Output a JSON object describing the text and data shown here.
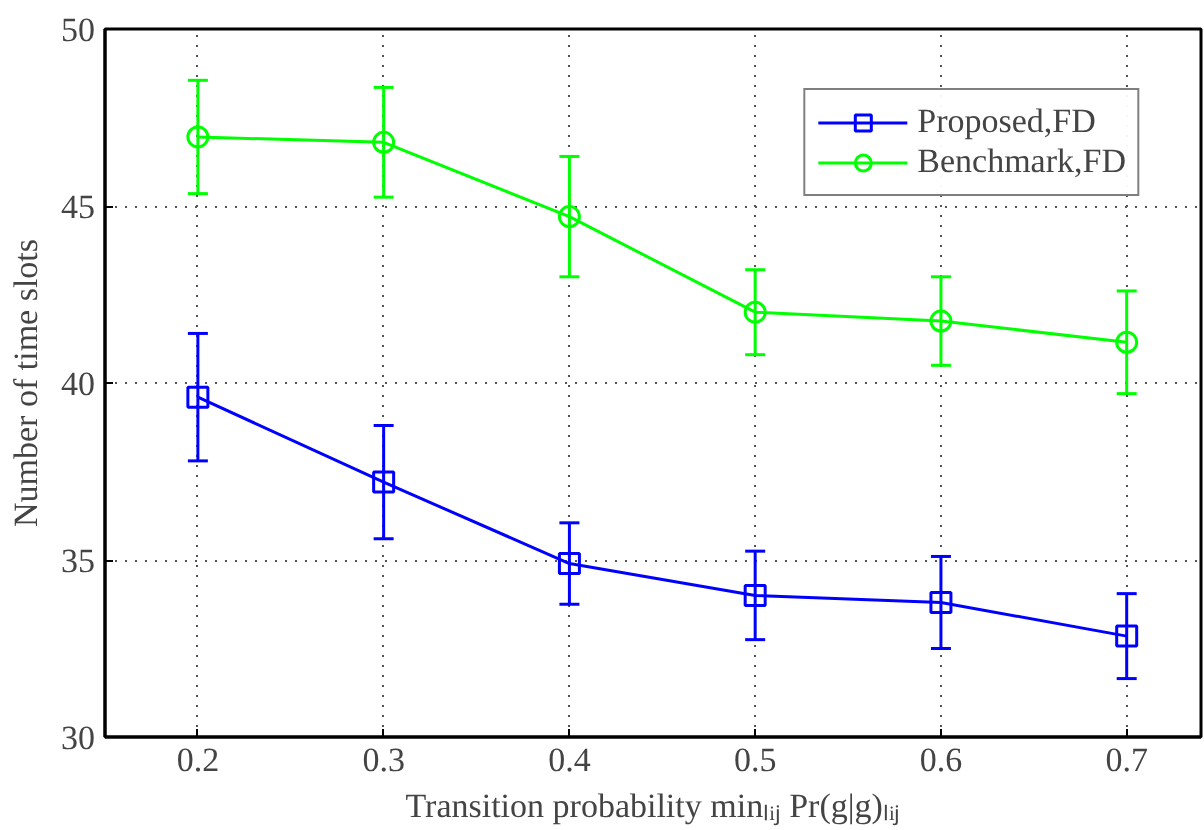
{
  "chart_data": {
    "type": "line",
    "xlabel": "Transition probability minₗᵢⱼ Pr(g|g)ₗᵢⱼ",
    "ylabel": "Number of time slots",
    "x": [
      0.2,
      0.3,
      0.4,
      0.5,
      0.6,
      0.7
    ],
    "series": [
      {
        "name": "Proposed,FD",
        "color": "#0000ff",
        "marker": "square",
        "values": [
          39.6,
          37.2,
          34.9,
          34.0,
          33.8,
          32.85
        ],
        "errors": [
          1.8,
          1.6,
          1.15,
          1.25,
          1.3,
          1.2
        ]
      },
      {
        "name": "Benchmark,FD",
        "color": "#00ff00",
        "marker": "circle",
        "values": [
          46.95,
          46.8,
          44.7,
          42.0,
          41.75,
          41.15
        ],
        "errors": [
          1.6,
          1.55,
          1.7,
          1.2,
          1.25,
          1.45
        ]
      }
    ],
    "xlim": [
      0.15,
      0.74
    ],
    "xticks": [
      0.2,
      0.3,
      0.4,
      0.5,
      0.6,
      0.7
    ],
    "ylim": [
      30,
      50
    ],
    "yticks": [
      30,
      35,
      40,
      45,
      50
    ],
    "grid": true,
    "legend": "top right",
    "line_style": "solid"
  }
}
